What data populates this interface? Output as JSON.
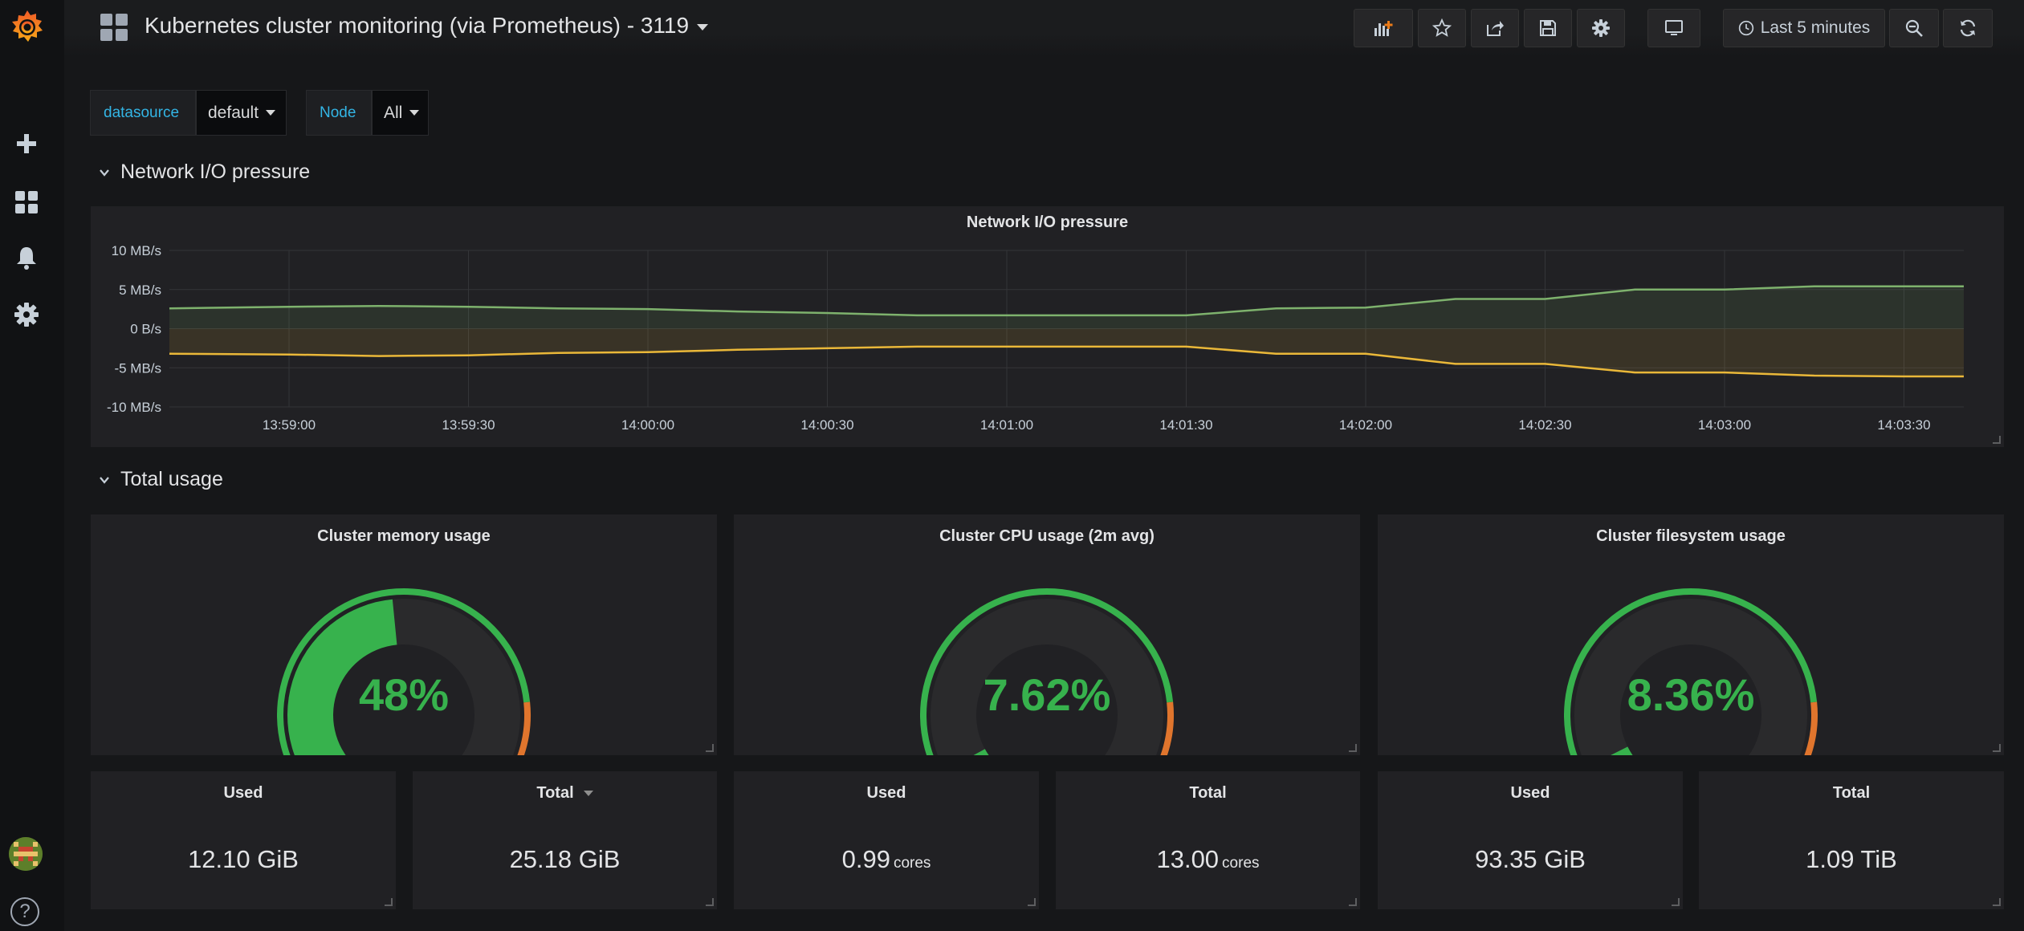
{
  "dashboard": {
    "title": "Kubernetes cluster monitoring (via Prometheus) - 3119"
  },
  "toolbar": {
    "time_range": "Last 5 minutes"
  },
  "variables": [
    {
      "label": "datasource",
      "value": "default"
    },
    {
      "label": "Node",
      "value": "All"
    }
  ],
  "rows": [
    {
      "title": "Network I/O pressure"
    },
    {
      "title": "Total usage"
    }
  ],
  "network_panel": {
    "title": "Network I/O pressure",
    "chart_data": {
      "type": "area",
      "y_ticks": [
        "10 MB/s",
        "5 MB/s",
        "0 B/s",
        "-5 MB/s",
        "-10 MB/s"
      ],
      "ylim": [
        -10,
        10
      ],
      "y_unit": "MB/s",
      "x_ticks": [
        "13:59:00",
        "13:59:30",
        "14:00:00",
        "14:00:30",
        "14:01:00",
        "14:01:30",
        "14:02:00",
        "14:02:30",
        "14:03:00",
        "14:03:30"
      ],
      "grid": true,
      "series": [
        {
          "color": "#7eb26d",
          "points": [
            [
              "13:58:40",
              2.6
            ],
            [
              "13:59:00",
              2.8
            ],
            [
              "13:59:15",
              2.9
            ],
            [
              "13:59:30",
              2.8
            ],
            [
              "13:59:45",
              2.6
            ],
            [
              "14:00:00",
              2.5
            ],
            [
              "14:00:15",
              2.2
            ],
            [
              "14:00:30",
              2.0
            ],
            [
              "14:00:45",
              1.7
            ],
            [
              "14:01:00",
              1.7
            ],
            [
              "14:01:15",
              1.7
            ],
            [
              "14:01:30",
              1.7
            ],
            [
              "14:01:45",
              2.6
            ],
            [
              "14:02:00",
              2.7
            ],
            [
              "14:02:15",
              3.8
            ],
            [
              "14:02:30",
              3.8
            ],
            [
              "14:02:45",
              5.0
            ],
            [
              "14:03:00",
              5.0
            ],
            [
              "14:03:15",
              5.4
            ],
            [
              "14:03:30",
              5.4
            ],
            [
              "14:03:40",
              5.4
            ]
          ]
        },
        {
          "color": "#eab839",
          "points": [
            [
              "13:58:40",
              -3.2
            ],
            [
              "13:59:00",
              -3.3
            ],
            [
              "13:59:15",
              -3.5
            ],
            [
              "13:59:30",
              -3.4
            ],
            [
              "13:59:45",
              -3.1
            ],
            [
              "14:00:00",
              -3.0
            ],
            [
              "14:00:15",
              -2.7
            ],
            [
              "14:00:30",
              -2.5
            ],
            [
              "14:00:45",
              -2.3
            ],
            [
              "14:01:00",
              -2.3
            ],
            [
              "14:01:15",
              -2.3
            ],
            [
              "14:01:30",
              -2.3
            ],
            [
              "14:01:45",
              -3.2
            ],
            [
              "14:02:00",
              -3.2
            ],
            [
              "14:02:15",
              -4.5
            ],
            [
              "14:02:30",
              -4.5
            ],
            [
              "14:02:45",
              -5.6
            ],
            [
              "14:03:00",
              -5.6
            ],
            [
              "14:03:15",
              -6.0
            ],
            [
              "14:03:30",
              -6.1
            ],
            [
              "14:03:40",
              -6.1
            ]
          ]
        }
      ]
    }
  },
  "gauges": [
    {
      "title": "Cluster memory usage",
      "display": "48%",
      "value": 48
    },
    {
      "title": "Cluster CPU usage (2m avg)",
      "display": "7.62%",
      "value": 7.62
    },
    {
      "title": "Cluster filesystem usage",
      "display": "8.36%",
      "value": 8.36
    }
  ],
  "gauge_style": {
    "green": "#37b24d",
    "orange": "#e0752d",
    "red": "#e02f44",
    "thresholds": [
      80,
      90
    ]
  },
  "stats": [
    {
      "title": "Used",
      "value": "12.10 GiB",
      "unit": ""
    },
    {
      "title": "Total",
      "value": "25.18 GiB",
      "unit": "",
      "sorted": true
    },
    {
      "title": "Used",
      "value": "0.99",
      "unit": "cores"
    },
    {
      "title": "Total",
      "value": "13.00",
      "unit": "cores"
    },
    {
      "title": "Used",
      "value": "93.35 GiB",
      "unit": ""
    },
    {
      "title": "Total",
      "value": "1.09 TiB",
      "unit": ""
    }
  ],
  "colors": {
    "accent": "#33b5e5",
    "background": "#161719",
    "panel": "#212124"
  }
}
